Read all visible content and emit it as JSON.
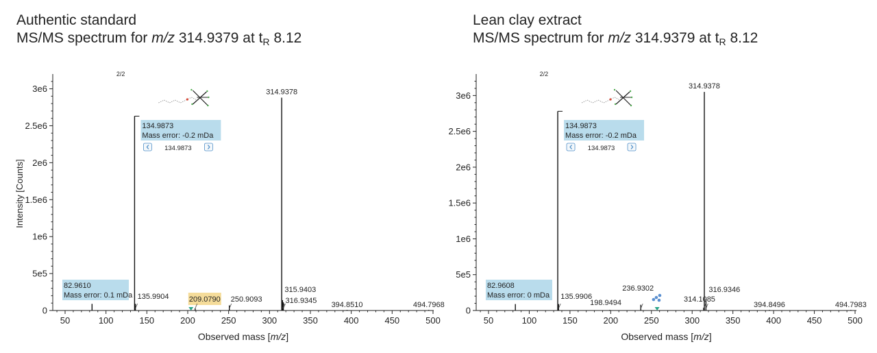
{
  "colors": {
    "axis": "#222222",
    "peak": "#111111",
    "annotation_fill": "#b9dcec",
    "annotation_highlight": "#f5dc9a",
    "marker": "#2aa58a",
    "structure_red": "#d94a3a",
    "structure_grey": "#9a9a9a",
    "nav_arrow": "#4f8fc8",
    "cluster_blue": "#5a8fd0"
  },
  "chart_data": [
    {
      "type": "bar",
      "title_line1": "Authentic standard",
      "title_prefix": "MS/MS spectrum for ",
      "title_mz_label": "m/z",
      "title_mass": " 314.9379 at t",
      "title_sub": "R",
      "title_time": " 8.12",
      "xlabel_prefix": "Observed mass [",
      "xlabel_unit": "m/z",
      "xlabel_suffix": "]",
      "ylabel": "Intensity [Counts]",
      "xlim": [
        30,
        500
      ],
      "ylim": [
        0,
        3200000
      ],
      "x_ticks": [
        50,
        100,
        150,
        200,
        250,
        300,
        350,
        400,
        450,
        500
      ],
      "x_tick_labels": [
        "50",
        "100",
        "150",
        "200",
        "250",
        "300",
        "350",
        "400",
        "450",
        "500"
      ],
      "y_ticks": [
        0,
        500000,
        1000000,
        1500000,
        2000000,
        2500000,
        3000000
      ],
      "y_tick_labels": [
        "0",
        "5e5",
        "1e6",
        "1.5e6",
        "2e6",
        "2.5e6",
        "3e6"
      ],
      "page_indicator": "2/2",
      "peaks": [
        {
          "mz": 82.961,
          "intensity": 90000,
          "label": "",
          "tag": "fragment"
        },
        {
          "mz": 134.9873,
          "intensity": 2630000,
          "label": "",
          "tag": "fragment"
        },
        {
          "mz": 135.9904,
          "intensity": 90000,
          "label": "135.9904"
        },
        {
          "mz": 209.079,
          "intensity": 30000,
          "label": "209.0790",
          "highlight": true
        },
        {
          "mz": 250.9093,
          "intensity": 70000,
          "label": "250.9093"
        },
        {
          "mz": 314.9378,
          "intensity": 2880000,
          "label": "314.9378"
        },
        {
          "mz": 315.9403,
          "intensity": 140000,
          "label": "315.9403"
        },
        {
          "mz": 316.9345,
          "intensity": 110000,
          "label": "316.9345"
        },
        {
          "mz": 394.851,
          "intensity": 8000,
          "label": "394.8510"
        },
        {
          "mz": 494.7968,
          "intensity": 8000,
          "label": "494.7968"
        }
      ],
      "markers": [
        {
          "mz": 204.0
        }
      ],
      "annotations": [
        {
          "mz": 82.961,
          "value": "82.9610",
          "error": "Mass error: 0.1 mDa",
          "position": "lower-left"
        },
        {
          "mz": 134.9873,
          "value": "134.9873",
          "error": "Mass error: -0.2 mDa",
          "nav_value": "134.9873",
          "position": "upper"
        }
      ]
    },
    {
      "type": "bar",
      "title_line1": "Lean clay extract",
      "title_prefix": "MS/MS spectrum for ",
      "title_mz_label": "m/z",
      "title_mass": " 314.9379 at t",
      "title_sub": "R",
      "title_time": " 8.12",
      "xlabel_prefix": "Observed mass [",
      "xlabel_unit": "m/z",
      "xlabel_suffix": "]",
      "ylabel": "",
      "xlim": [
        30,
        500
      ],
      "ylim": [
        0,
        3300000
      ],
      "x_ticks": [
        50,
        100,
        150,
        200,
        250,
        300,
        350,
        400,
        450,
        500
      ],
      "x_tick_labels": [
        "50",
        "100",
        "150",
        "200",
        "250",
        "300",
        "350",
        "400",
        "450",
        "500"
      ],
      "y_ticks": [
        0,
        500000,
        1000000,
        1500000,
        2000000,
        2500000,
        3000000
      ],
      "y_tick_labels": [
        "0",
        "5e5",
        "1e6",
        "1.5e6",
        "2e6",
        "2.5e6",
        "3e6"
      ],
      "page_indicator": "2/2",
      "peaks": [
        {
          "mz": 82.9608,
          "intensity": 90000,
          "label": "",
          "tag": "fragment"
        },
        {
          "mz": 134.9873,
          "intensity": 2780000,
          "label": "",
          "tag": "fragment"
        },
        {
          "mz": 135.9906,
          "intensity": 90000,
          "label": "135.9906"
        },
        {
          "mz": 198.9494,
          "intensity": 8000,
          "label": "198.9494"
        },
        {
          "mz": 236.9302,
          "intensity": 80000,
          "label": "236.9302"
        },
        {
          "mz": 314.1085,
          "intensity": 40000,
          "label": "314.1085"
        },
        {
          "mz": 314.9378,
          "intensity": 3050000,
          "label": "314.9378"
        },
        {
          "mz": 316.9346,
          "intensity": 160000,
          "label": "316.9346"
        },
        {
          "mz": 394.8496,
          "intensity": 8000,
          "label": "394.8496"
        },
        {
          "mz": 494.7983,
          "intensity": 8000,
          "label": "494.7983"
        }
      ],
      "markers": [
        {
          "mz": 257.0
        }
      ],
      "annotations": [
        {
          "mz": 82.9608,
          "value": "82.9608",
          "error": "Mass error: 0 mDa",
          "position": "lower-left"
        },
        {
          "mz": 134.9873,
          "value": "134.9873",
          "error": "Mass error: -0.2 mDa",
          "nav_value": "134.9873",
          "position": "upper"
        }
      ]
    }
  ]
}
